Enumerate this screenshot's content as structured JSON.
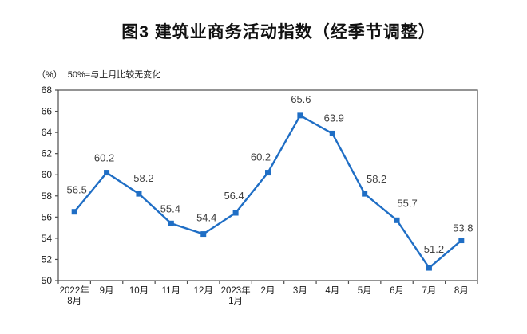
{
  "figure": {
    "title": "图3 建筑业商务活动指数（经季节调整）",
    "unit_label": "（%）",
    "reference_note": "50%=与上月比较无变化"
  },
  "chart_data": {
    "type": "line",
    "title": "图3 建筑业商务活动指数（经季节调整）",
    "categories": [
      [
        "2022年",
        "8月"
      ],
      [
        "9月"
      ],
      [
        "10月"
      ],
      [
        "11月"
      ],
      [
        "12月"
      ],
      [
        "2023年",
        "1月"
      ],
      [
        "2月"
      ],
      [
        "3月"
      ],
      [
        "4月"
      ],
      [
        "5月"
      ],
      [
        "6月"
      ],
      [
        "7月"
      ],
      [
        "8月"
      ]
    ],
    "values": [
      56.5,
      60.2,
      58.2,
      55.4,
      54.4,
      56.4,
      60.2,
      65.6,
      63.9,
      58.2,
      55.7,
      51.2,
      53.8
    ],
    "data_labels": [
      "56.5",
      "60.2",
      "58.2",
      "55.4",
      "54.4",
      "56.4",
      "60.2",
      "65.6",
      "63.9",
      "58.2",
      "55.7",
      "51.2",
      "53.8"
    ],
    "xlabel": "",
    "ylabel": "（%）",
    "note": "50%=与上月比较无变化",
    "ylim": [
      50,
      68
    ],
    "ytick_step": 2,
    "ytick_labels": [
      "50",
      "52",
      "54",
      "56",
      "58",
      "60",
      "62",
      "64",
      "66",
      "68"
    ],
    "grid": false,
    "legend_position": "none",
    "line_color": "#1F6EC5",
    "marker": "square",
    "axis_color": "#4d4d4d",
    "tick_text_color": "#1a1a1a",
    "data_label_color": "#404040"
  }
}
